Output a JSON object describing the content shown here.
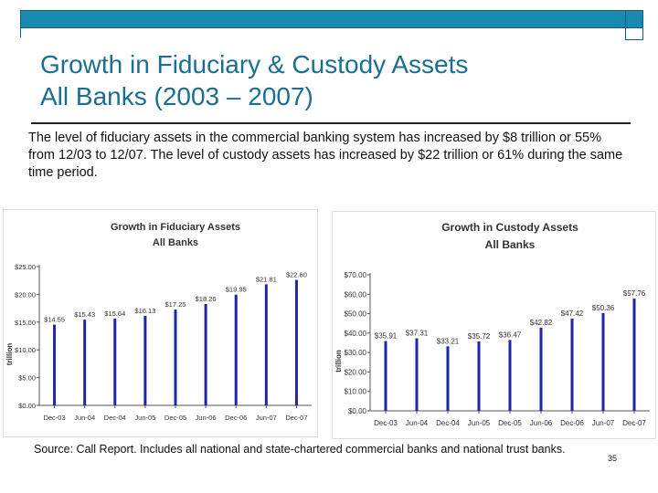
{
  "slide": {
    "title_line1": "Growth in Fiduciary & Custody Assets",
    "title_line2": "All Banks (2003 – 2007)",
    "body": "The level of fiduciary assets in the commercial banking system has increased by $8 trillion or 55% from 12/03 to 12/07.  The level of custody assets has increased by $22 trillion or 61% during the same time period.",
    "source": "Source:  Call Report.  Includes all national and state-chartered commercial banks and national trust banks.",
    "page_number": "35",
    "colors": {
      "bar": "#1f26a8",
      "title": "#1b6e93",
      "topbar": "#1b8ab0"
    }
  },
  "chart_data": [
    {
      "type": "bar",
      "title": "Growth in Fiduciary Assets",
      "subtitle": "All Banks",
      "ylabel": "trillion",
      "xlabel": "",
      "categories": [
        "Dec-03",
        "Jun-04",
        "Dec-04",
        "Jun-05",
        "Dec-05",
        "Jun-06",
        "Dec-06",
        "Jun-07",
        "Dec-07"
      ],
      "values": [
        14.55,
        15.43,
        15.64,
        16.13,
        17.25,
        18.26,
        19.95,
        21.81,
        22.6
      ],
      "value_labels": [
        "$14.55",
        "$15.43",
        "$15.64",
        "$16.13",
        "$17.25",
        "$18.26",
        "$19.95",
        "$21.81",
        "$22.60"
      ],
      "ylim": [
        0,
        25
      ],
      "yticks": [
        0,
        5,
        10,
        15,
        20,
        25
      ],
      "ytick_labels": [
        "$0.00",
        "$5.00",
        "$10.00",
        "$15.00",
        "$20.00",
        "$25.00"
      ],
      "grid": false
    },
    {
      "type": "bar",
      "title": "Growth in Custody Assets",
      "subtitle": "All Banks",
      "ylabel": "trillion",
      "xlabel": "",
      "categories": [
        "Dec-03",
        "Jun-04",
        "Dec-04",
        "Jun-05",
        "Dec-05",
        "Jun-06",
        "Dec-06",
        "Jun-07",
        "Dec-07"
      ],
      "values": [
        35.91,
        37.31,
        33.21,
        35.72,
        36.47,
        42.82,
        47.42,
        50.36,
        57.76
      ],
      "value_labels": [
        "$35.91",
        "$37.31",
        "$33.21",
        "$35.72",
        "$36.47",
        "$42.82",
        "$47.42",
        "$50.36",
        "$57.76"
      ],
      "ylim": [
        0,
        70
      ],
      "yticks": [
        0,
        10,
        20,
        30,
        40,
        50,
        60,
        70
      ],
      "ytick_labels": [
        "$0.00",
        "$10.00",
        "$20.00",
        "$30.00",
        "$40.00",
        "$50.00",
        "$60.00",
        "$70.00"
      ],
      "grid": false
    }
  ]
}
